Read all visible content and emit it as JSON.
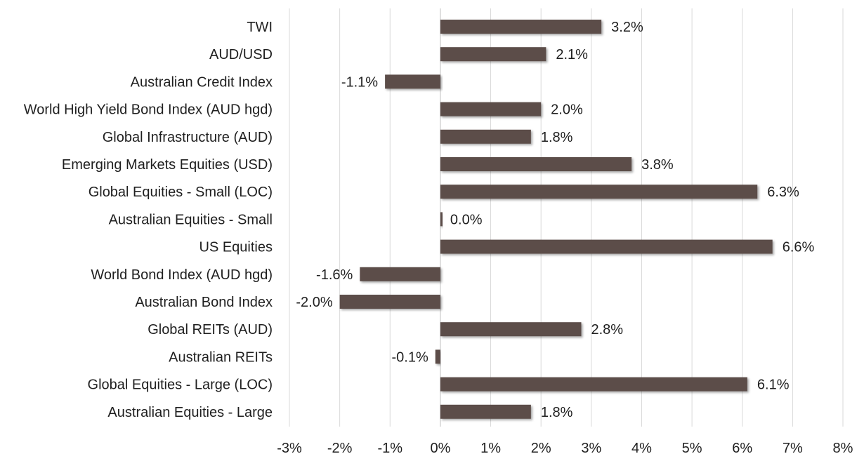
{
  "chart_data": {
    "type": "bar",
    "orientation": "horizontal",
    "categories": [
      "TWI",
      "AUD/USD",
      "Australian Credit Index",
      "World High Yield Bond Index (AUD hgd)",
      "Global Infrastructure (AUD)",
      "Emerging Markets Equities (USD)",
      "Global Equities - Small (LOC)",
      "Australian Equities - Small",
      "US Equities",
      "World Bond Index (AUD hgd)",
      "Australian Bond Index",
      "Global REITs (AUD)",
      "Australian REITs",
      "Global Equities - Large (LOC)",
      "Australian Equities - Large"
    ],
    "values": [
      3.2,
      2.1,
      -1.1,
      2.0,
      1.8,
      3.8,
      6.3,
      0.0,
      6.6,
      -1.6,
      -2.0,
      2.8,
      -0.1,
      6.1,
      1.8
    ],
    "value_labels": [
      "3.2%",
      "2.1%",
      "-1.1%",
      "2.0%",
      "1.8%",
      "3.8%",
      "6.3%",
      "0.0%",
      "6.6%",
      "-1.6%",
      "-2.0%",
      "2.8%",
      "-0.1%",
      "6.1%",
      "1.8%"
    ],
    "xlim": [
      -3,
      8
    ],
    "xticks": [
      -3,
      -2,
      -1,
      0,
      1,
      2,
      3,
      4,
      5,
      6,
      7,
      8
    ],
    "xtick_labels": [
      "-3%",
      "-2%",
      "-1%",
      "0%",
      "1%",
      "2%",
      "3%",
      "4%",
      "5%",
      "6%",
      "7%",
      "8%"
    ],
    "grid": "vertical",
    "legend": "none",
    "title": "",
    "xlabel": "",
    "ylabel": "",
    "bar_color": "#5c4d48",
    "grid_color": "#d9d9d9",
    "text_color": "#1f1f1f"
  }
}
